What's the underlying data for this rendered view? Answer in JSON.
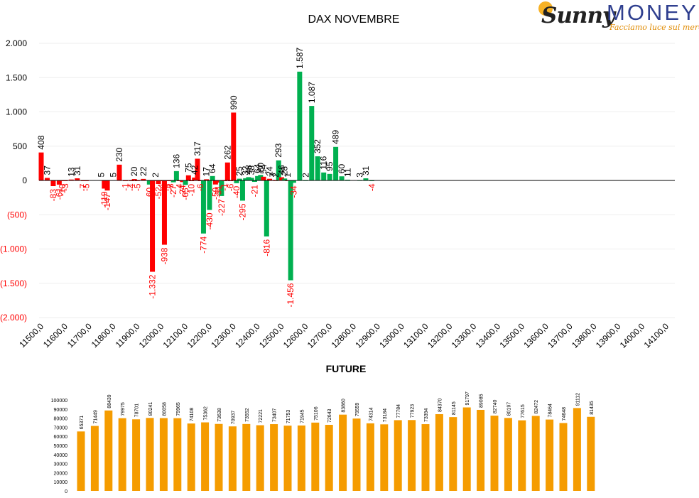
{
  "logo": {
    "brand_left": "Sunny",
    "brand_right": "MONEY",
    "tagline": "Facciamo luce sui mercati"
  },
  "colors": {
    "positive": "#00b050",
    "negative": "#ff0000",
    "future_bar": "#f59c00",
    "axis_text": "#000000"
  },
  "chart_data": [
    {
      "type": "bar",
      "title": "DAX NOVEMBRE",
      "xlabel": "",
      "ylabel": "",
      "ylim": [
        -2000,
        2000
      ],
      "yticks": [
        2000,
        1500,
        1000,
        500,
        0,
        -500,
        -1000,
        -1500,
        -2000
      ],
      "ytick_labels": [
        "2.000",
        "1.500",
        "1.000",
        "500",
        "0",
        "(500)",
        "(1.000)",
        "(1.500)",
        "(2.000)"
      ],
      "x_tick_labels": [
        "11500,0",
        "11600,0",
        "11700,0",
        "11800,0",
        "11900,0",
        "12000,0",
        "12100,0",
        "12200,0",
        "12300,0",
        "12400,0",
        "12500,0",
        "12600,0",
        "12700,0",
        "12800,0",
        "12900,0",
        "13000,0",
        "13100,0",
        "13200,0",
        "13300,0",
        "13400,0",
        "13500,0",
        "13600,0",
        "13700,0",
        "13800,0",
        "13900,0",
        "14000,0",
        "14100,0"
      ],
      "x_start": 11500,
      "x_end": 14100,
      "grid": true,
      "series": [
        {
          "values": [
            [
              11500,
              408,
              "408"
            ],
            [
              11525,
              37,
              "37"
            ],
            [
              11550,
              -83,
              "-83"
            ],
            [
              11575,
              -61,
              "-61"
            ],
            [
              11587.5,
              -10,
              "-10"
            ],
            [
              11600,
              -3,
              "-3"
            ],
            [
              11625,
              13,
              "13"
            ],
            [
              11650,
              31,
              "31"
            ],
            [
              11675,
              -7,
              "-7"
            ],
            [
              11687.5,
              -5,
              "-5"
            ],
            [
              11750,
              5,
              "5"
            ],
            [
              11762.5,
              -119,
              "-119"
            ],
            [
              11775,
              -147,
              "-147"
            ],
            [
              11800,
              5,
              "5"
            ],
            [
              11825,
              230,
              "230"
            ],
            [
              11850,
              -1,
              "-1"
            ],
            [
              11875,
              -4,
              "-4"
            ],
            [
              11887.5,
              20,
              "20"
            ],
            [
              11900,
              -5,
              "-5"
            ],
            [
              11925,
              22,
              "22"
            ],
            [
              11950,
              -60,
              "-60"
            ],
            [
              11962.5,
              -1332,
              "-1.332"
            ],
            [
              11975,
              2,
              "2"
            ],
            [
              11987.5,
              -52,
              "-52"
            ],
            [
              12000,
              -4,
              "-4"
            ],
            [
              12012.5,
              -938,
              "-938"
            ],
            [
              12025,
              -9,
              "-9"
            ],
            [
              12037.5,
              -3,
              "-3"
            ],
            [
              12050,
              -27,
              "-27"
            ],
            [
              12062.5,
              136,
              "136"
            ],
            [
              12075,
              -4,
              "-4"
            ],
            [
              12087.5,
              -24,
              "-24"
            ],
            [
              12100,
              -65,
              "-65"
            ],
            [
              12112.5,
              75,
              "75"
            ],
            [
              12125,
              -10,
              "-10"
            ],
            [
              12137.5,
              42,
              "42"
            ],
            [
              12150,
              317,
              "317"
            ],
            [
              12162.5,
              -6,
              "-6"
            ],
            [
              12175,
              -774,
              "-774"
            ],
            [
              12187.5,
              17,
              "17"
            ],
            [
              12200,
              -430,
              "-430"
            ],
            [
              12212.5,
              64,
              "64"
            ],
            [
              12225,
              -59,
              "-59"
            ],
            [
              12237.5,
              -31,
              "-31"
            ],
            [
              12250,
              -227,
              "-227"
            ],
            [
              12262.5,
              -1,
              "-1"
            ],
            [
              12275,
              262,
              "262"
            ],
            [
              12287.5,
              -6,
              "-6"
            ],
            [
              12300,
              990,
              "990"
            ],
            [
              12312.5,
              -40,
              "-40"
            ],
            [
              12325,
              25,
              "25"
            ],
            [
              12337.5,
              -295,
              "-295"
            ],
            [
              12350,
              32,
              "32"
            ],
            [
              12362.5,
              48,
              "48"
            ],
            [
              12375,
              38,
              "38"
            ],
            [
              12387.5,
              -21,
              "-21"
            ],
            [
              12400,
              64,
              "64"
            ],
            [
              12412.5,
              80,
              "80"
            ],
            [
              12425,
              54,
              "54"
            ],
            [
              12437.5,
              -816,
              "-816"
            ],
            [
              12450,
              24,
              "24"
            ],
            [
              12462.5,
              7,
              "7"
            ],
            [
              12475,
              2,
              "2"
            ],
            [
              12487.5,
              293,
              "293"
            ],
            [
              12500,
              46,
              "46"
            ],
            [
              12512.5,
              28,
              "28"
            ],
            [
              12525,
              1,
              "1"
            ],
            [
              12537.5,
              -1456,
              "-1.456"
            ],
            [
              12550,
              -34,
              "-34"
            ],
            [
              12575,
              1587,
              "1.587"
            ],
            [
              12600,
              2,
              "2"
            ],
            [
              12625,
              1087,
              "1.087"
            ],
            [
              12650,
              352,
              "352"
            ],
            [
              12675,
              116,
              "116"
            ],
            [
              12700,
              95,
              "95"
            ],
            [
              12725,
              489,
              "489"
            ],
            [
              12750,
              60,
              "60"
            ],
            [
              12775,
              11,
              "11"
            ],
            [
              12825,
              3,
              "3"
            ],
            [
              12850,
              31,
              "31"
            ],
            [
              12875,
              -4,
              "-4"
            ]
          ]
        }
      ]
    },
    {
      "type": "bar",
      "title": "FUTURE",
      "xlabel": "",
      "ylabel": "",
      "ylim": [
        0,
        100000
      ],
      "yticks": [
        0,
        10000,
        20000,
        30000,
        40000,
        50000,
        60000,
        70000,
        80000,
        90000,
        100000
      ],
      "ytick_labels": [
        "0",
        "10000",
        "20000",
        "30000",
        "40000",
        "50000",
        "60000",
        "70000",
        "80000",
        "90000",
        "100000"
      ],
      "grid": false,
      "values": [
        65371,
        71449,
        88439,
        79975,
        78701,
        80241,
        80058,
        79965,
        74108,
        75362,
        73638,
        70937,
        73552,
        72221,
        73407,
        71753,
        71945,
        75106,
        72643,
        83860,
        79559,
        74314,
        73184,
        77784,
        77923,
        73394,
        84370,
        81145,
        91797,
        89085,
        82740,
        80197,
        77615,
        82472,
        78464,
        74648,
        91112,
        81435
      ]
    }
  ]
}
